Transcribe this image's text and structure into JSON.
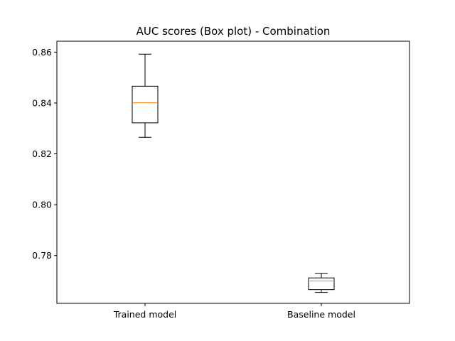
{
  "chart_data": {
    "type": "box",
    "title": "AUC scores (Box plot) - Combination",
    "xlabel": "",
    "ylabel": "",
    "categories": [
      "Trained model",
      "Baseline model"
    ],
    "boxes": [
      {
        "name": "Trained model",
        "whisker_low": 0.8265,
        "q1": 0.8322,
        "median": 0.8401,
        "q3": 0.8466,
        "whisker_high": 0.8592
      },
      {
        "name": "Baseline model",
        "whisker_low": 0.7655,
        "q1": 0.7666,
        "median": 0.77,
        "q3": 0.7712,
        "whisker_high": 0.773
      }
    ],
    "ylim": [
      0.7612,
      0.8643
    ],
    "yticks": [
      0.78,
      0.8,
      0.82,
      0.84,
      0.86
    ],
    "ytick_labels": [
      "0.78",
      "0.80",
      "0.82",
      "0.84",
      "0.86"
    ],
    "grid": false,
    "box_color": "#000000",
    "median_color": "#ff7f0e"
  }
}
